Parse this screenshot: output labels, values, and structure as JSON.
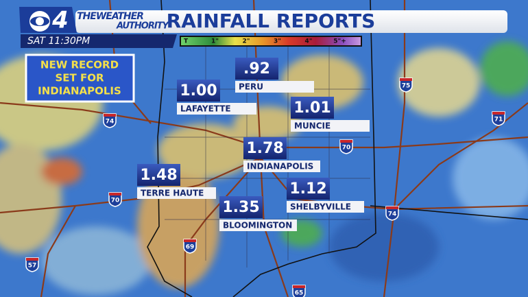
{
  "header": {
    "logo_number": "4",
    "brand_line1": "THEWEATHER",
    "brand_line2": "AUTHORITY",
    "title": "RAINFALL REPORTS",
    "time": "SAT  11:30PM"
  },
  "scale": {
    "labels": [
      "T",
      "1\"",
      "2\"",
      "3\"",
      "4\"",
      "5\"+"
    ]
  },
  "callout": {
    "lines": [
      "NEW RECORD",
      "SET FOR",
      "INDIANAPOLIS"
    ]
  },
  "reports": [
    {
      "amount": ".92",
      "city": "PERU"
    },
    {
      "amount": "1.00",
      "city": "LAFAYETTE"
    },
    {
      "amount": "1.01",
      "city": "MUNCIE"
    },
    {
      "amount": "1.78",
      "city": "INDIANAPOLIS"
    },
    {
      "amount": "1.48",
      "city": "TERRE HAUTE"
    },
    {
      "amount": "1.12",
      "city": "SHELBYVILLE"
    },
    {
      "amount": "1.35",
      "city": "BLOOMINGTON"
    }
  ],
  "shields": [
    "74",
    "70",
    "57",
    "69",
    "65",
    "70",
    "75",
    "71",
    "74"
  ]
}
